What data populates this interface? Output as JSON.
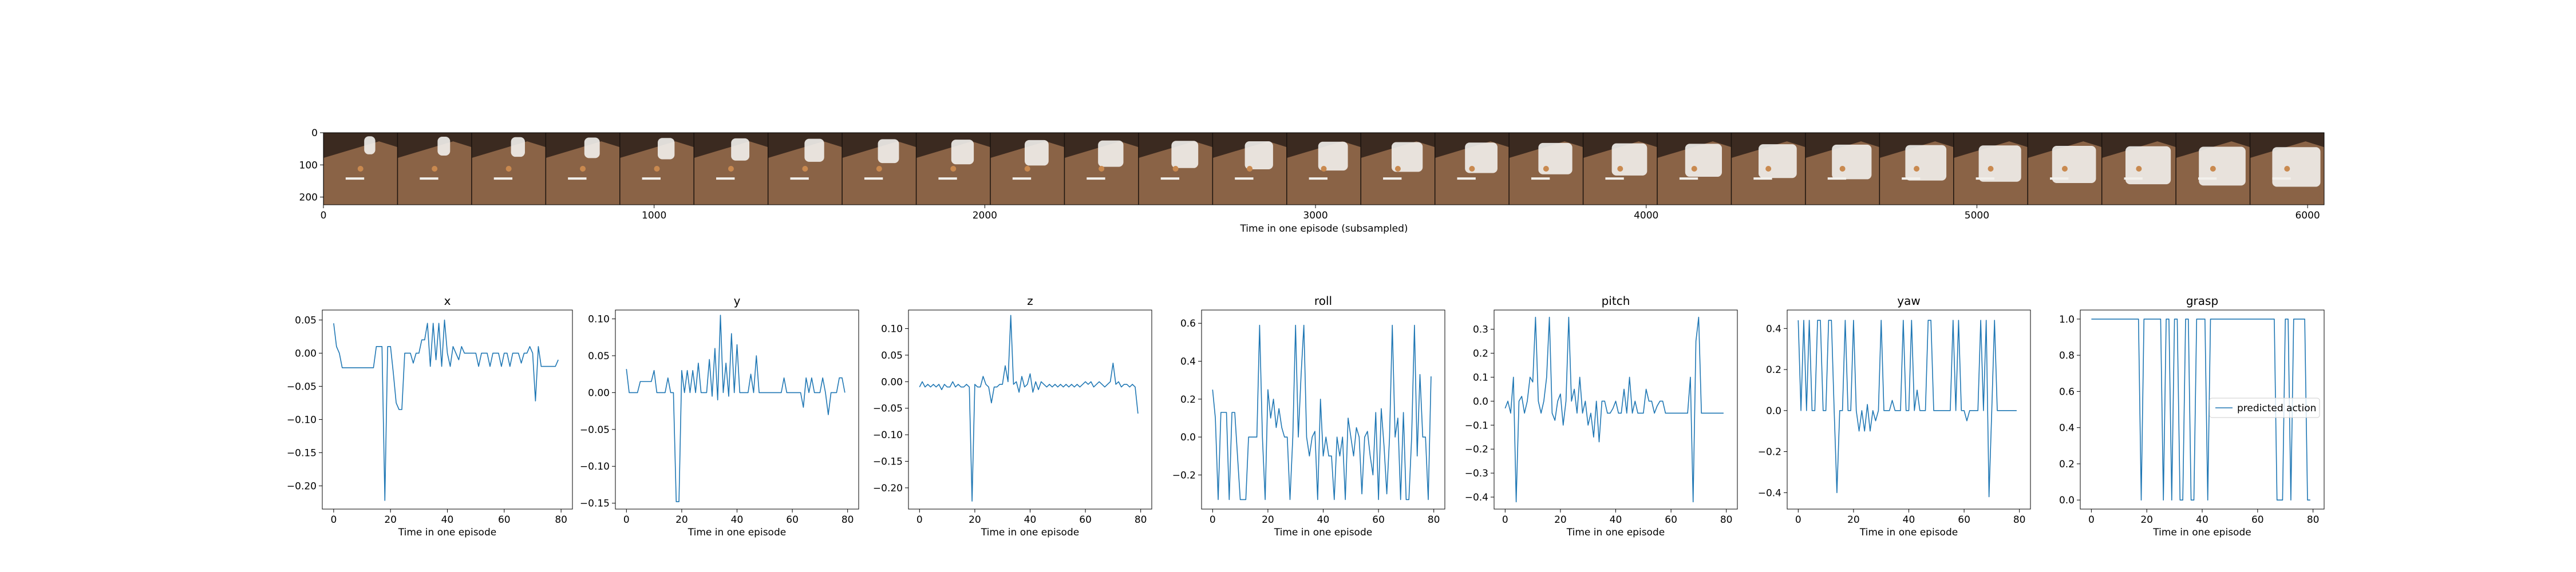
{
  "filmstrip": {
    "xlabel": "Time in one episode (subsampled)",
    "x_ticks": [
      0,
      1000,
      2000,
      3000,
      4000,
      5000,
      6000
    ],
    "y_ticks": [
      0,
      100,
      200
    ],
    "xlim": [
      0,
      6050
    ],
    "ylim": [
      0,
      224
    ],
    "frame_count": 27,
    "frame_colors": {
      "table": "#8a6346",
      "wall": "#3b2a20",
      "arm": "#f2f0ec",
      "object": "#c9894f"
    }
  },
  "line_color": "#1f77b4",
  "legend": {
    "label": "predicted action",
    "location": "center-right",
    "panel": "grasp"
  },
  "chart_data": [
    {
      "type": "line",
      "title": "x",
      "xlabel": "Time in one episode",
      "xlim": [
        -4,
        84
      ],
      "ylim": [
        -0.235,
        0.065
      ],
      "x_ticks": [
        0,
        20,
        40,
        60,
        80
      ],
      "y_ticks": [
        0.05,
        0.0,
        -0.05,
        -0.1,
        -0.15,
        -0.2
      ],
      "y_tick_labels": [
        "0.05",
        "0.00",
        "−0.05",
        "−0.10",
        "−0.15",
        "−0.20"
      ],
      "x": [
        0,
        1,
        2,
        3,
        4,
        5,
        6,
        7,
        8,
        9,
        10,
        11,
        12,
        13,
        14,
        15,
        16,
        17,
        18,
        19,
        20,
        21,
        22,
        23,
        24,
        25,
        26,
        27,
        28,
        29,
        30,
        31,
        32,
        33,
        34,
        35,
        36,
        37,
        38,
        39,
        40,
        41,
        42,
        43,
        44,
        45,
        46,
        47,
        48,
        49,
        50,
        51,
        52,
        53,
        54,
        55,
        56,
        57,
        58,
        59,
        60,
        61,
        62,
        63,
        64,
        65,
        66,
        67,
        68,
        69,
        70,
        71,
        72,
        73,
        74,
        75,
        76,
        77,
        78,
        79
      ],
      "y": [
        0.045,
        0.01,
        0.0,
        -0.022,
        -0.022,
        -0.022,
        -0.022,
        -0.022,
        -0.022,
        -0.022,
        -0.022,
        -0.022,
        -0.022,
        -0.022,
        -0.022,
        0.01,
        0.01,
        0.01,
        -0.222,
        0.01,
        0.01,
        -0.03,
        -0.075,
        -0.085,
        -0.085,
        0.0,
        0.0,
        0.0,
        -0.015,
        0.0,
        0.0,
        0.02,
        0.02,
        0.045,
        -0.02,
        0.045,
        -0.01,
        0.045,
        -0.02,
        0.05,
        0.0,
        -0.02,
        0.01,
        0.0,
        -0.01,
        0.01,
        0.0,
        0.0,
        0.0,
        0.0,
        0.0,
        -0.02,
        0.0,
        0.0,
        0.0,
        -0.02,
        0.0,
        0.0,
        0.0,
        -0.02,
        0.0,
        0.0,
        -0.02,
        0.0,
        0.0,
        0.0,
        -0.015,
        0.0,
        0.0,
        0.01,
        0.0,
        -0.072,
        0.01,
        -0.02,
        -0.02,
        -0.02,
        -0.02,
        -0.02,
        -0.02,
        -0.01
      ]
    },
    {
      "type": "line",
      "title": "y",
      "xlabel": "Time in one episode",
      "xlim": [
        -4,
        84
      ],
      "ylim": [
        -0.158,
        0.112
      ],
      "x_ticks": [
        0,
        20,
        40,
        60,
        80
      ],
      "y_ticks": [
        0.1,
        0.05,
        0.0,
        -0.05,
        -0.1,
        -0.15
      ],
      "y_tick_labels": [
        "0.10",
        "0.05",
        "0.00",
        "−0.05",
        "−0.10",
        "−0.15"
      ],
      "x": [
        0,
        1,
        2,
        3,
        4,
        5,
        6,
        7,
        8,
        9,
        10,
        11,
        12,
        13,
        14,
        15,
        16,
        17,
        18,
        19,
        20,
        21,
        22,
        23,
        24,
        25,
        26,
        27,
        28,
        29,
        30,
        31,
        32,
        33,
        34,
        35,
        36,
        37,
        38,
        39,
        40,
        41,
        42,
        43,
        44,
        45,
        46,
        47,
        48,
        49,
        50,
        51,
        52,
        53,
        54,
        55,
        56,
        57,
        58,
        59,
        60,
        61,
        62,
        63,
        64,
        65,
        66,
        67,
        68,
        69,
        70,
        71,
        72,
        73,
        74,
        75,
        76,
        77,
        78,
        79
      ],
      "y": [
        0.032,
        0.0,
        0.0,
        0.0,
        0.0,
        0.015,
        0.015,
        0.015,
        0.015,
        0.015,
        0.03,
        0.0,
        0.0,
        0.0,
        0.0,
        0.02,
        0.0,
        0.0,
        -0.148,
        -0.148,
        0.03,
        0.0,
        0.03,
        0.0,
        0.03,
        0.0,
        0.04,
        0.0,
        0.0,
        0.0,
        0.045,
        -0.005,
        0.06,
        -0.01,
        0.105,
        0.0,
        0.04,
        -0.005,
        0.08,
        0.0,
        0.065,
        0.0,
        0.0,
        0.0,
        0.0,
        0.025,
        0.0,
        0.05,
        0.0,
        0.0,
        0.0,
        0.0,
        0.0,
        0.0,
        0.0,
        0.0,
        0.0,
        0.02,
        0.0,
        0.0,
        0.0,
        0.0,
        0.0,
        0.0,
        -0.02,
        0.02,
        0.0,
        0.02,
        0.0,
        0.0,
        0.0,
        0.02,
        0.0,
        -0.03,
        0.0,
        0.0,
        0.0,
        0.02,
        0.02,
        0.0
      ]
    },
    {
      "type": "line",
      "title": "z",
      "xlabel": "Time in one episode",
      "xlim": [
        -4,
        84
      ],
      "ylim": [
        -0.24,
        0.135
      ],
      "x_ticks": [
        0,
        20,
        40,
        60,
        80
      ],
      "y_ticks": [
        0.1,
        0.05,
        0.0,
        -0.05,
        -0.1,
        -0.15,
        -0.2
      ],
      "y_tick_labels": [
        "0.10",
        "0.05",
        "0.00",
        "−0.05",
        "−0.10",
        "−0.15",
        "−0.20"
      ],
      "x": [
        0,
        1,
        2,
        3,
        4,
        5,
        6,
        7,
        8,
        9,
        10,
        11,
        12,
        13,
        14,
        15,
        16,
        17,
        18,
        19,
        20,
        21,
        22,
        23,
        24,
        25,
        26,
        27,
        28,
        29,
        30,
        31,
        32,
        33,
        34,
        35,
        36,
        37,
        38,
        39,
        40,
        41,
        42,
        43,
        44,
        45,
        46,
        47,
        48,
        49,
        50,
        51,
        52,
        53,
        54,
        55,
        56,
        57,
        58,
        59,
        60,
        61,
        62,
        63,
        64,
        65,
        66,
        67,
        68,
        69,
        70,
        71,
        72,
        73,
        74,
        75,
        76,
        77,
        78,
        79
      ],
      "y": [
        -0.01,
        0.0,
        -0.01,
        -0.005,
        -0.01,
        -0.005,
        -0.01,
        -0.005,
        -0.015,
        -0.005,
        -0.01,
        -0.01,
        0.0,
        -0.01,
        -0.005,
        -0.01,
        -0.01,
        -0.005,
        -0.01,
        -0.225,
        -0.005,
        -0.01,
        -0.01,
        0.01,
        -0.005,
        -0.01,
        -0.04,
        -0.01,
        -0.01,
        -0.005,
        -0.005,
        0.03,
        0.0,
        0.125,
        -0.005,
        0.0,
        -0.02,
        0.01,
        -0.01,
        -0.005,
        0.015,
        -0.02,
        0.0,
        -0.015,
        0.0,
        -0.005,
        -0.01,
        -0.005,
        -0.01,
        -0.005,
        -0.01,
        -0.005,
        -0.01,
        -0.005,
        -0.01,
        -0.005,
        -0.01,
        -0.005,
        -0.01,
        -0.005,
        0.0,
        -0.005,
        0.0,
        -0.01,
        -0.005,
        0.0,
        -0.005,
        -0.01,
        -0.005,
        0.0,
        0.035,
        -0.005,
        0.0,
        -0.01,
        -0.005,
        -0.005,
        -0.01,
        -0.005,
        -0.01,
        -0.06
      ]
    },
    {
      "type": "line",
      "title": "roll",
      "xlabel": "Time in one episode",
      "xlim": [
        -4,
        84
      ],
      "ylim": [
        -0.38,
        0.67
      ],
      "x_ticks": [
        0,
        20,
        40,
        60,
        80
      ],
      "y_ticks": [
        0.6,
        0.4,
        0.2,
        0.0,
        -0.2
      ],
      "y_tick_labels": [
        "0.6",
        "0.4",
        "0.2",
        "0.0",
        "−0.2"
      ],
      "x": [
        0,
        1,
        2,
        3,
        4,
        5,
        6,
        7,
        8,
        9,
        10,
        11,
        12,
        13,
        14,
        15,
        16,
        17,
        18,
        19,
        20,
        21,
        22,
        23,
        24,
        25,
        26,
        27,
        28,
        29,
        30,
        31,
        32,
        33,
        34,
        35,
        36,
        37,
        38,
        39,
        40,
        41,
        42,
        43,
        44,
        45,
        46,
        47,
        48,
        49,
        50,
        51,
        52,
        53,
        54,
        55,
        56,
        57,
        58,
        59,
        60,
        61,
        62,
        63,
        64,
        65,
        66,
        67,
        68,
        69,
        70,
        71,
        72,
        73,
        74,
        75,
        76,
        77,
        78,
        79
      ],
      "y": [
        0.25,
        0.1,
        -0.33,
        0.13,
        0.13,
        0.13,
        -0.33,
        0.13,
        0.13,
        -0.1,
        -0.33,
        -0.33,
        -0.33,
        0.0,
        0.0,
        0.0,
        0.0,
        0.59,
        0.0,
        -0.33,
        0.25,
        0.1,
        0.2,
        0.05,
        0.15,
        0.05,
        0.0,
        0.0,
        -0.33,
        0.0,
        0.59,
        0.0,
        0.33,
        0.59,
        0.0,
        -0.1,
        0.0,
        0.03,
        -0.33,
        0.2,
        -0.1,
        0.0,
        -0.1,
        -0.1,
        -0.33,
        0.0,
        -0.1,
        0.0,
        -0.33,
        0.1,
        0.0,
        -0.1,
        0.05,
        0.0,
        -0.3,
        0.0,
        0.03,
        -0.1,
        -0.2,
        0.13,
        -0.33,
        0.15,
        -0.05,
        -0.3,
        0.0,
        0.59,
        0.0,
        0.1,
        -0.33,
        0.13,
        -0.33,
        -0.33,
        0.0,
        0.59,
        -0.1,
        0.33,
        0.0,
        0.0,
        -0.33,
        0.32
      ]
    },
    {
      "type": "line",
      "title": "pitch",
      "xlabel": "Time in one episode",
      "xlim": [
        -4,
        84
      ],
      "ylim": [
        -0.45,
        0.38
      ],
      "x_ticks": [
        0,
        20,
        40,
        60,
        80
      ],
      "y_ticks": [
        0.3,
        0.2,
        0.1,
        0.0,
        -0.1,
        -0.2,
        -0.3,
        -0.4
      ],
      "y_tick_labels": [
        "0.3",
        "0.2",
        "0.1",
        "0.0",
        "−0.1",
        "−0.2",
        "−0.3",
        "−0.4"
      ],
      "x": [
        0,
        1,
        2,
        3,
        4,
        5,
        6,
        7,
        8,
        9,
        10,
        11,
        12,
        13,
        14,
        15,
        16,
        17,
        18,
        19,
        20,
        21,
        22,
        23,
        24,
        25,
        26,
        27,
        28,
        29,
        30,
        31,
        32,
        33,
        34,
        35,
        36,
        37,
        38,
        39,
        40,
        41,
        42,
        43,
        44,
        45,
        46,
        47,
        48,
        49,
        50,
        51,
        52,
        53,
        54,
        55,
        56,
        57,
        58,
        59,
        60,
        61,
        62,
        63,
        64,
        65,
        66,
        67,
        68,
        69,
        70,
        71,
        72,
        73,
        74,
        75,
        76,
        77,
        78,
        79
      ],
      "y": [
        -0.03,
        0.0,
        -0.05,
        0.1,
        -0.42,
        0.0,
        0.02,
        -0.05,
        0.0,
        0.1,
        0.08,
        0.35,
        0.0,
        -0.05,
        0.0,
        0.1,
        0.35,
        -0.05,
        -0.08,
        0.0,
        0.03,
        -0.1,
        0.0,
        0.35,
        0.0,
        0.05,
        -0.05,
        0.1,
        -0.05,
        0.0,
        -0.1,
        -0.05,
        -0.15,
        0.0,
        -0.17,
        0.0,
        0.0,
        -0.05,
        -0.05,
        -0.03,
        0.0,
        -0.05,
        -0.05,
        0.05,
        -0.05,
        0.1,
        -0.05,
        0.0,
        -0.05,
        -0.05,
        -0.05,
        0.05,
        0.0,
        0.0,
        -0.05,
        -0.02,
        0.0,
        0.0,
        -0.05,
        -0.05,
        -0.05,
        -0.05,
        -0.05,
        -0.05,
        -0.05,
        -0.05,
        -0.05,
        0.1,
        -0.42,
        0.25,
        0.35,
        -0.05,
        -0.05,
        -0.05,
        -0.05,
        -0.05,
        -0.05,
        -0.05,
        -0.05,
        -0.05
      ]
    },
    {
      "type": "line",
      "title": "yaw",
      "xlabel": "Time in one episode",
      "xlim": [
        -4,
        84
      ],
      "ylim": [
        -0.48,
        0.49
      ],
      "x_ticks": [
        0,
        20,
        40,
        60,
        80
      ],
      "y_ticks": [
        0.4,
        0.2,
        0.0,
        -0.2,
        -0.4
      ],
      "y_tick_labels": [
        "0.4",
        "0.2",
        "0.0",
        "−0.2",
        "−0.4"
      ],
      "x": [
        0,
        1,
        2,
        3,
        4,
        5,
        6,
        7,
        8,
        9,
        10,
        11,
        12,
        13,
        14,
        15,
        16,
        17,
        18,
        19,
        20,
        21,
        22,
        23,
        24,
        25,
        26,
        27,
        28,
        29,
        30,
        31,
        32,
        33,
        34,
        35,
        36,
        37,
        38,
        39,
        40,
        41,
        42,
        43,
        44,
        45,
        46,
        47,
        48,
        49,
        50,
        51,
        52,
        53,
        54,
        55,
        56,
        57,
        58,
        59,
        60,
        61,
        62,
        63,
        64,
        65,
        66,
        67,
        68,
        69,
        70,
        71,
        72,
        73,
        74,
        75,
        76,
        77,
        78,
        79
      ],
      "y": [
        0.44,
        0.0,
        0.44,
        0.0,
        0.44,
        0.0,
        0.0,
        0.44,
        0.44,
        0.0,
        0.0,
        0.44,
        0.44,
        0.0,
        -0.4,
        0.0,
        0.0,
        0.44,
        0.0,
        0.0,
        0.44,
        0.0,
        -0.1,
        0.0,
        -0.1,
        0.03,
        -0.1,
        0.0,
        -0.05,
        0.0,
        0.44,
        0.0,
        0.0,
        0.0,
        0.05,
        0.0,
        0.0,
        0.0,
        0.44,
        0.0,
        0.0,
        0.44,
        0.0,
        0.1,
        0.0,
        0.0,
        0.0,
        0.44,
        0.44,
        0.0,
        0.0,
        0.0,
        0.0,
        0.0,
        0.0,
        0.0,
        0.44,
        0.0,
        0.44,
        0.0,
        0.0,
        -0.05,
        0.0,
        0.0,
        0.0,
        0.0,
        0.44,
        0.0,
        0.44,
        -0.42,
        0.0,
        0.44,
        0.0,
        0.0,
        0.0,
        0.0,
        0.0,
        0.0,
        0.0,
        0.0
      ]
    },
    {
      "type": "line",
      "title": "grasp",
      "xlabel": "Time in one episode",
      "xlim": [
        -4,
        84
      ],
      "ylim": [
        -0.05,
        1.05
      ],
      "x_ticks": [
        0,
        20,
        40,
        60,
        80
      ],
      "y_ticks": [
        1.0,
        0.8,
        0.6,
        0.4,
        0.2,
        0.0
      ],
      "y_tick_labels": [
        "1.0",
        "0.8",
        "0.6",
        "0.4",
        "0.2",
        "0.0"
      ],
      "x": [
        0,
        1,
        2,
        3,
        4,
        5,
        6,
        7,
        8,
        9,
        10,
        11,
        12,
        13,
        14,
        15,
        16,
        17,
        18,
        19,
        20,
        21,
        22,
        23,
        24,
        25,
        26,
        27,
        28,
        29,
        30,
        31,
        32,
        33,
        34,
        35,
        36,
        37,
        38,
        39,
        40,
        41,
        42,
        43,
        44,
        45,
        46,
        47,
        48,
        49,
        50,
        51,
        52,
        53,
        54,
        55,
        56,
        57,
        58,
        59,
        60,
        61,
        62,
        63,
        64,
        65,
        66,
        67,
        68,
        69,
        70,
        71,
        72,
        73,
        74,
        75,
        76,
        77,
        78,
        79
      ],
      "y": [
        1,
        1,
        1,
        1,
        1,
        1,
        1,
        1,
        1,
        1,
        1,
        1,
        1,
        1,
        1,
        1,
        1,
        1,
        0,
        1,
        1,
        1,
        1,
        1,
        1,
        1,
        0,
        1,
        1,
        0,
        1,
        1,
        0,
        0,
        1,
        1,
        0,
        0,
        1,
        1,
        1,
        1,
        0,
        1,
        1,
        1,
        1,
        1,
        1,
        1,
        1,
        1,
        1,
        1,
        1,
        1,
        1,
        1,
        1,
        1,
        1,
        1,
        1,
        1,
        1,
        1,
        1,
        0,
        0,
        0,
        1,
        1,
        0,
        1,
        1,
        1,
        1,
        1,
        0,
        0
      ]
    }
  ]
}
